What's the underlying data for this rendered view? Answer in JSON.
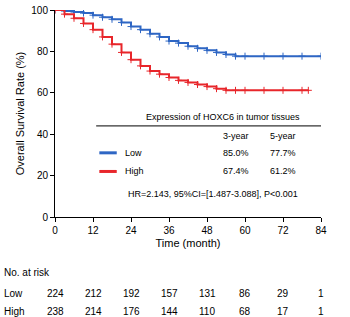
{
  "chart_data": {
    "type": "line",
    "line_style": "step",
    "marker": "cross",
    "grid": false,
    "x_label": "Time (month)",
    "y_label": "Overall Survival Rate (%)",
    "xlim": [
      0,
      84
    ],
    "xticks": [
      0,
      12,
      24,
      36,
      48,
      60,
      72,
      84
    ],
    "ylim": [
      0,
      100
    ],
    "yticks": [
      0,
      20,
      40,
      60,
      80,
      100
    ],
    "series": [
      {
        "name": "Low",
        "color": "#2e66c4",
        "x": [
          0,
          3,
          6,
          9,
          12,
          15,
          18,
          21,
          24,
          27,
          30,
          33,
          36,
          39,
          42,
          45,
          48,
          51,
          54,
          57,
          60,
          66,
          72,
          78,
          84
        ],
        "values": [
          100,
          99.5,
          99,
          98.5,
          97.5,
          96.5,
          95.5,
          94,
          92,
          90.5,
          88.5,
          87,
          85,
          84,
          82.5,
          81.5,
          80.5,
          79.5,
          78.5,
          77.7,
          77.7,
          77.7,
          77.7,
          77.7,
          77.7
        ]
      },
      {
        "name": "High",
        "color": "#e8262b",
        "x": [
          0,
          3,
          6,
          9,
          12,
          15,
          18,
          21,
          24,
          27,
          30,
          33,
          36,
          39,
          42,
          45,
          48,
          51,
          54,
          57,
          60,
          66,
          72,
          78,
          80
        ],
        "values": [
          100,
          98,
          96,
          93.5,
          90.5,
          87,
          83.5,
          79.5,
          76,
          73,
          70.5,
          69,
          67.4,
          66,
          65,
          64,
          63,
          62,
          61.2,
          61.2,
          61.2,
          61.2,
          61.2,
          61.2,
          61.2
        ]
      }
    ],
    "inset_table": {
      "title": "Expression of HOXC6 in tumor tissues",
      "columns": [
        "3-year",
        "5-year"
      ],
      "rows": [
        {
          "name": "Low",
          "cells": [
            "85.0%",
            "77.7%"
          ]
        },
        {
          "name": "High",
          "cells": [
            "67.4%",
            "61.2%"
          ]
        }
      ],
      "note": "HR=2.143, 95%CI=[1.487-3.088], P<0.001"
    },
    "risk_table": {
      "title": "No. at risk",
      "rows": [
        {
          "name": "Low",
          "values": [
            224,
            212,
            192,
            157,
            131,
            86,
            29,
            1
          ]
        },
        {
          "name": "High",
          "values": [
            238,
            214,
            176,
            144,
            110,
            68,
            17,
            1
          ]
        }
      ]
    }
  }
}
